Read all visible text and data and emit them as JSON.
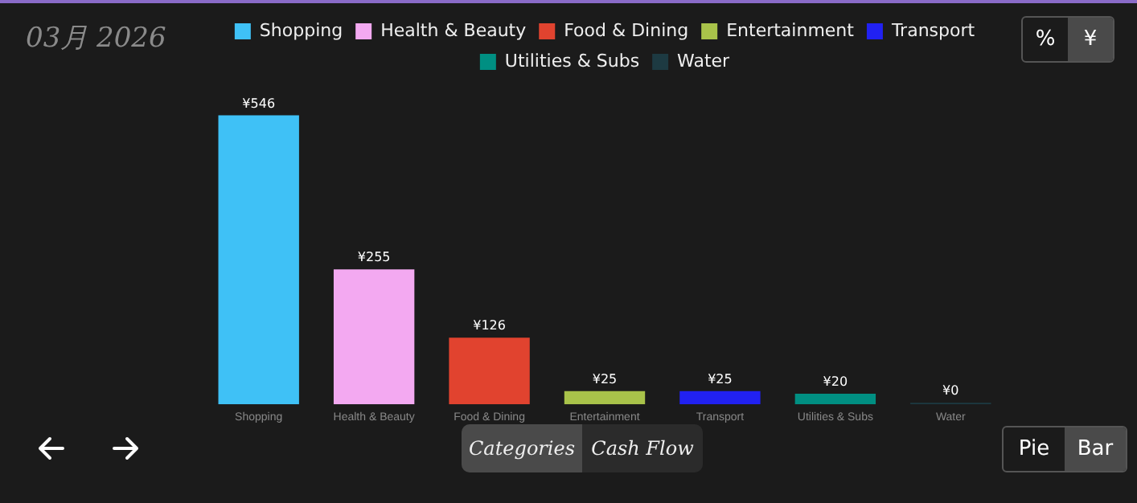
{
  "chart_data": {
    "type": "bar",
    "title": "03月 2026",
    "categories": [
      "Shopping",
      "Health & Beauty",
      "Food & Dining",
      "Entertainment",
      "Transport",
      "Utilities & Subs",
      "Water"
    ],
    "series": [
      {
        "name": "Shopping",
        "color": "#3fc1f6",
        "values": [
          546,
          null,
          null,
          null,
          null,
          null,
          null
        ],
        "value_labels": [
          "¥546",
          null,
          null,
          null,
          null,
          null,
          null
        ]
      },
      {
        "name": "Health & Beauty",
        "color": "#f3a9f1",
        "values": [
          null,
          255,
          null,
          null,
          null,
          null,
          null
        ],
        "value_labels": [
          null,
          "¥255",
          null,
          null,
          null,
          null,
          null
        ]
      },
      {
        "name": "Food & Dining",
        "color": "#e1432f",
        "values": [
          null,
          null,
          126,
          null,
          null,
          null,
          null
        ],
        "value_labels": [
          null,
          null,
          "¥126",
          null,
          null,
          null,
          null
        ]
      },
      {
        "name": "Entertainment",
        "color": "#a9c34a",
        "values": [
          null,
          null,
          null,
          25,
          null,
          null,
          null
        ],
        "value_labels": [
          null,
          null,
          null,
          "¥25",
          null,
          null,
          null
        ]
      },
      {
        "name": "Transport",
        "color": "#2121f2",
        "values": [
          null,
          null,
          null,
          null,
          25,
          null,
          null
        ],
        "value_labels": [
          null,
          null,
          null,
          null,
          "¥25",
          null,
          null
        ]
      },
      {
        "name": "Utilities & Subs",
        "color": "#008f82",
        "values": [
          null,
          null,
          null,
          null,
          null,
          20,
          null
        ],
        "value_labels": [
          null,
          null,
          null,
          null,
          null,
          "¥20",
          null
        ]
      },
      {
        "name": "Water",
        "color": "#1d3a42",
        "values": [
          null,
          null,
          null,
          null,
          null,
          null,
          0
        ],
        "value_labels": [
          null,
          null,
          null,
          null,
          null,
          null,
          "¥0"
        ]
      }
    ],
    "legend": "top",
    "tick_labels": "x",
    "annotations": [
      "%",
      "¥",
      "Categories",
      "Cash Flow",
      "Pie",
      "Bar"
    ]
  }
}
